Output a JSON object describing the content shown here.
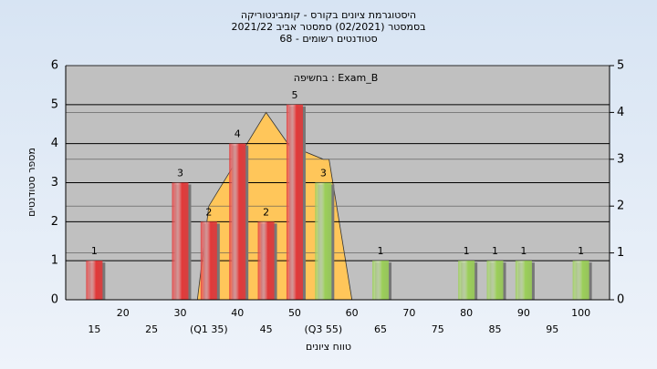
{
  "chart_data": {
    "type": "bar",
    "title": [
      "היסטוגרמת ציונים בקורס - קומבינטוריקה",
      "בסמסטר (02/2021) סמסטר אביב 2021/22",
      "סטודנטים רשומים - 68"
    ],
    "annotation": "בחשיפה : Exam_B",
    "ylabel": "מספר סטודנטים",
    "xlabel": "טווח ציונים",
    "x": [
      15,
      30,
      35,
      40,
      45,
      50,
      55,
      65,
      80,
      85,
      90,
      100
    ],
    "values": [
      1,
      3,
      2,
      4,
      2,
      5,
      3,
      1,
      1,
      1,
      1,
      1
    ],
    "colors": [
      "#e23a3a",
      "#e23a3a",
      "#e23a3a",
      "#e23a3a",
      "#e23a3a",
      "#e23a3a",
      "#9ccf5a",
      "#9ccf5a",
      "#9ccf5a",
      "#9ccf5a",
      "#9ccf5a",
      "#9ccf5a"
    ],
    "area": {
      "x": [
        33,
        35,
        45,
        49,
        55,
        56,
        60
      ],
      "values": [
        0,
        2,
        4,
        3.3,
        3,
        3,
        0
      ],
      "axis": "y2",
      "color": "#ffc65a"
    },
    "xlim": [
      10,
      105
    ],
    "xticks": [
      15,
      20,
      25,
      30,
      {
        "value": 35,
        "label": "(Q1 35)"
      },
      40,
      45,
      50,
      {
        "value": 55,
        "label": "(Q3 55)"
      },
      60,
      65,
      70,
      75,
      80,
      85,
      90,
      95,
      100
    ],
    "ylim": [
      0,
      6
    ],
    "yticks": [
      0,
      1,
      2,
      3,
      4,
      5,
      6
    ],
    "y2lim": [
      0,
      5
    ],
    "y2ticks": [
      0,
      1,
      2,
      3,
      4,
      5
    ],
    "grid": true
  }
}
